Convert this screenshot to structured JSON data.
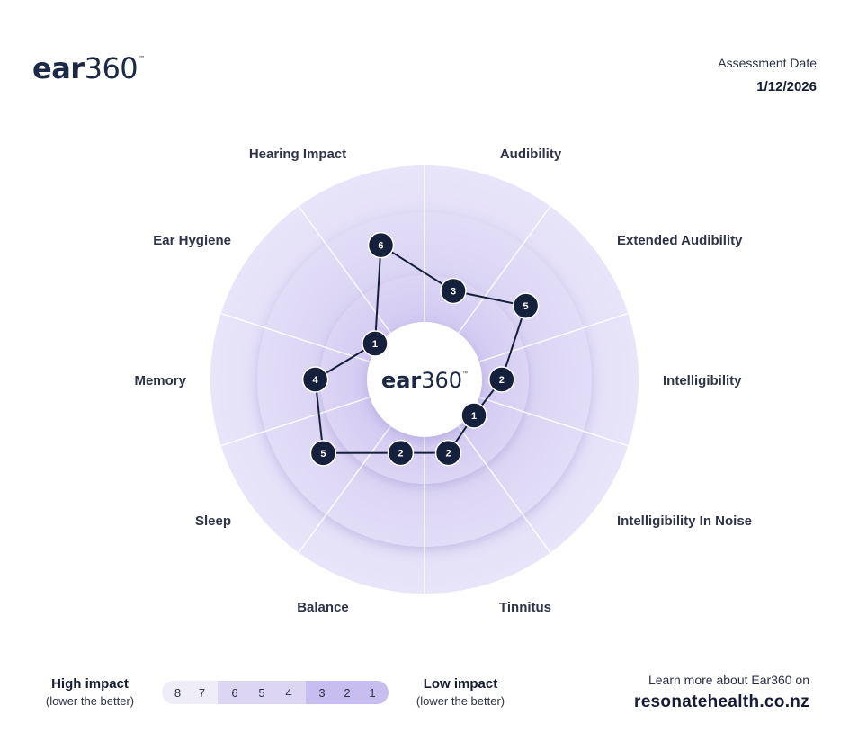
{
  "header": {
    "logo_main": "ear",
    "logo_num": "360",
    "logo_tm": "™",
    "assessment_label": "Assessment Date",
    "assessment_date": "1/12/2026"
  },
  "center_logo": {
    "main": "ear",
    "num": "360",
    "tm": "™"
  },
  "chart_data": {
    "type": "radar",
    "axes": [
      "Audibility",
      "Extended Audibility",
      "Intelligibility",
      "Intelligibility In Noise",
      "Tinnitus",
      "Balance",
      "Sleep",
      "Memory",
      "Ear Hygiene",
      "Hearing Impact"
    ],
    "values": [
      3,
      5,
      2,
      1,
      2,
      2,
      5,
      4,
      1,
      6
    ],
    "scale": [
      8,
      7,
      6,
      5,
      4,
      3,
      2,
      1
    ],
    "note": "lower the better"
  },
  "legend": {
    "high_title": "High impact",
    "high_sub": "(lower the better)",
    "low_title": "Low impact",
    "low_sub": "(lower the better)",
    "scale_high": [
      "8",
      "7"
    ],
    "scale_mid": [
      "6",
      "5",
      "4"
    ],
    "scale_low": [
      "3",
      "2",
      "1"
    ]
  },
  "footer": {
    "learn_more": "Learn more about Ear360 on",
    "url": "resonatehealth.co.nz"
  },
  "colors": {
    "ring_outer": "#e4e0f7",
    "ring_mid": "#d9d3f3",
    "ring_inner": "#cfc7ef",
    "node": "#15203d",
    "line": "#15203d"
  }
}
